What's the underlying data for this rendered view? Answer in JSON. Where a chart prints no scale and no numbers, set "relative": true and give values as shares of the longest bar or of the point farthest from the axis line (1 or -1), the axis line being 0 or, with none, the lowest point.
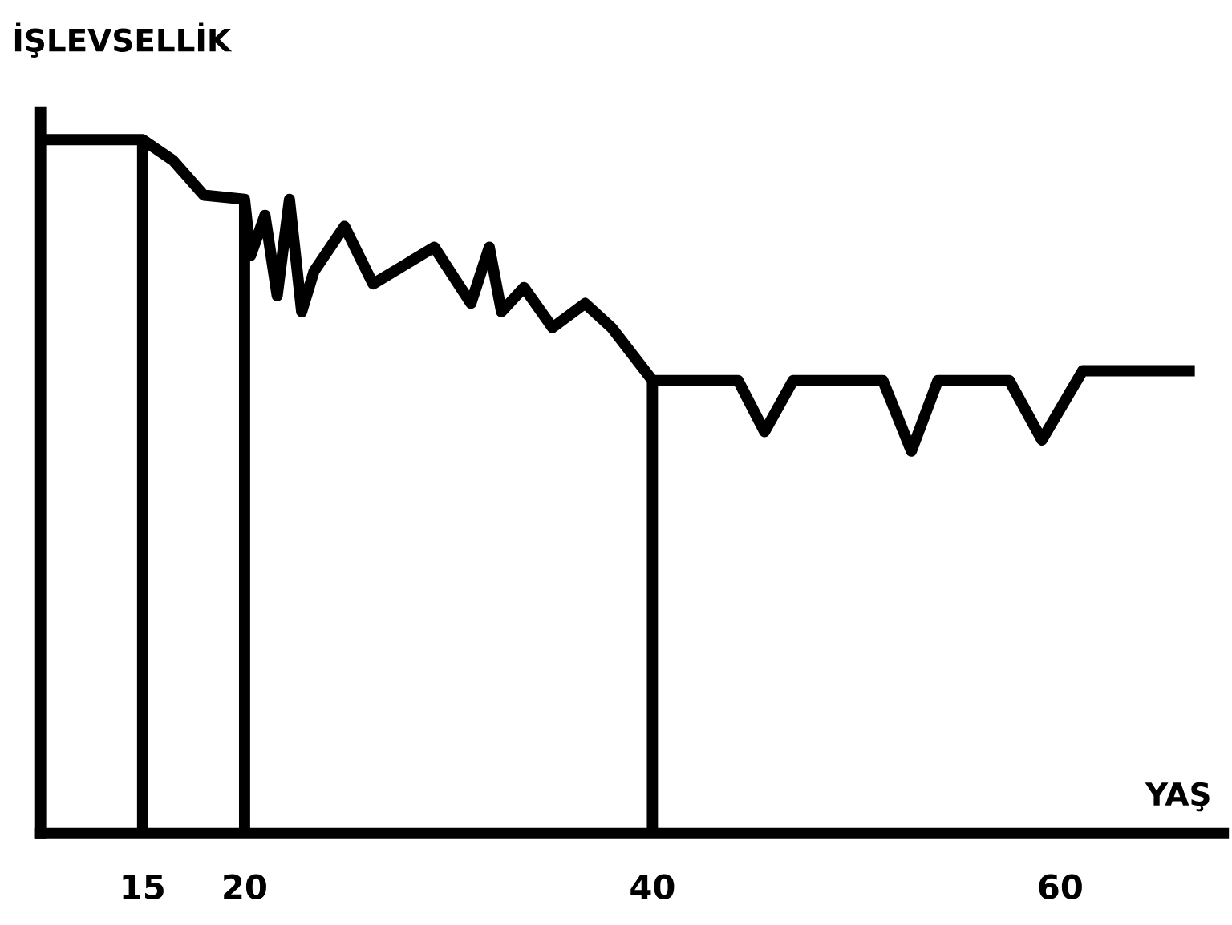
{
  "chart_data": {
    "type": "line",
    "relative": true,
    "ylabel": "İŞLEVSELLİK",
    "xlabel": "YAŞ",
    "xlim": [
      10,
      68
    ],
    "xticks": [
      15,
      20,
      40,
      60
    ],
    "tick_labels": "x",
    "grid": false,
    "marker": "none",
    "line_style": "solid",
    "series": [
      {
        "color": "#000000",
        "x": [
          10,
          15,
          16.5,
          18,
          20,
          20.3,
          21.0,
          21.6,
          22.2,
          22.8,
          23.4,
          24.9,
          26.3,
          29.3,
          31.1,
          32.0,
          32.6,
          33.7,
          35.1,
          36.7,
          38.0,
          40,
          44.2,
          45.5,
          46.9,
          51.3,
          52.7,
          54.0,
          57.5,
          59.1,
          61.1,
          66.6
        ],
        "values": [
          1.0,
          1.0,
          0.97,
          0.92,
          0.914,
          0.833,
          0.891,
          0.775,
          0.914,
          0.752,
          0.81,
          0.875,
          0.792,
          0.845,
          0.764,
          0.845,
          0.752,
          0.787,
          0.729,
          0.764,
          0.729,
          0.653,
          0.653,
          0.579,
          0.653,
          0.653,
          0.551,
          0.653,
          0.653,
          0.567,
          0.667,
          0.667
        ]
      }
    ],
    "ref_lines": [
      {
        "axis": "x",
        "value": 15,
        "color": "#000000"
      },
      {
        "axis": "x",
        "value": 20,
        "color": "#000000"
      },
      {
        "axis": "x",
        "value": 40,
        "color": "#000000"
      }
    ]
  }
}
